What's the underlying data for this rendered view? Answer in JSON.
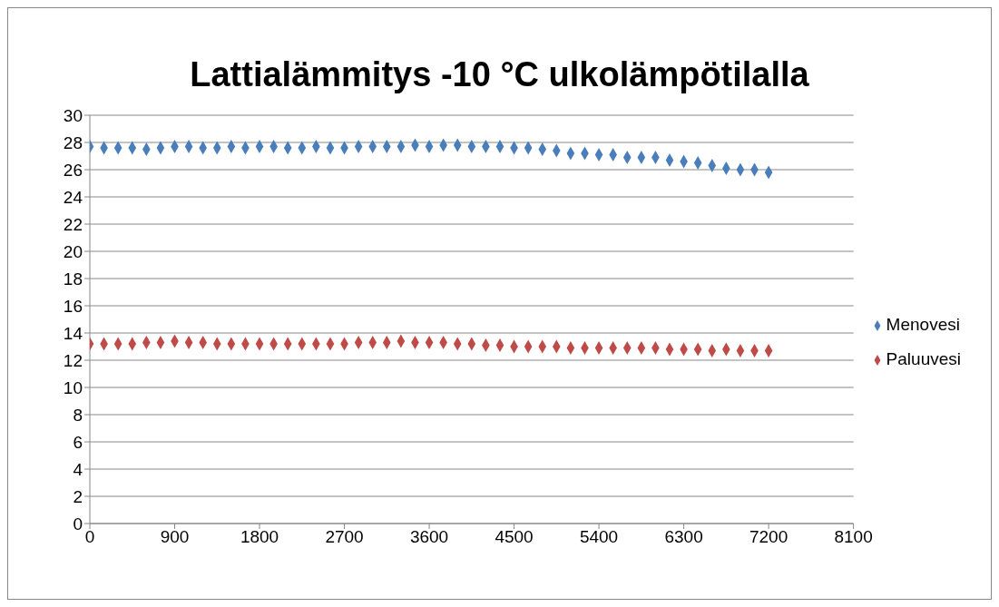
{
  "chart_data": {
    "type": "scatter",
    "title": "Lattialämmitys -10 °C ulkolämpötilalla",
    "x": [
      0,
      150,
      300,
      450,
      600,
      750,
      900,
      1050,
      1200,
      1350,
      1500,
      1650,
      1800,
      1950,
      2100,
      2250,
      2400,
      2550,
      2700,
      2850,
      3000,
      3150,
      3300,
      3450,
      3600,
      3750,
      3900,
      4050,
      4200,
      4350,
      4500,
      4650,
      4800,
      4950,
      5100,
      5250,
      5400,
      5550,
      5700,
      5850,
      6000,
      6150,
      6300,
      6450,
      6600,
      6750,
      6900,
      7050,
      7200
    ],
    "series": [
      {
        "name": "Menovesi",
        "color": "#4a7ebb",
        "values": [
          27.7,
          27.6,
          27.6,
          27.6,
          27.5,
          27.6,
          27.7,
          27.7,
          27.6,
          27.6,
          27.7,
          27.6,
          27.7,
          27.7,
          27.6,
          27.6,
          27.7,
          27.6,
          27.6,
          27.7,
          27.7,
          27.7,
          27.7,
          27.8,
          27.7,
          27.8,
          27.8,
          27.7,
          27.7,
          27.7,
          27.6,
          27.6,
          27.5,
          27.4,
          27.2,
          27.2,
          27.1,
          27.1,
          26.9,
          26.9,
          26.9,
          26.7,
          26.6,
          26.5,
          26.3,
          26.1,
          26.0,
          26.0,
          25.8
        ]
      },
      {
        "name": "Paluuvesi",
        "color": "#be4b48",
        "values": [
          13.2,
          13.2,
          13.2,
          13.2,
          13.3,
          13.3,
          13.4,
          13.3,
          13.3,
          13.2,
          13.2,
          13.2,
          13.2,
          13.2,
          13.2,
          13.2,
          13.2,
          13.2,
          13.2,
          13.3,
          13.3,
          13.3,
          13.4,
          13.3,
          13.3,
          13.3,
          13.2,
          13.2,
          13.1,
          13.1,
          13.0,
          13.0,
          13.0,
          13.0,
          12.9,
          12.9,
          12.9,
          12.9,
          12.9,
          12.9,
          12.9,
          12.8,
          12.8,
          12.8,
          12.7,
          12.8,
          12.7,
          12.7,
          12.7
        ]
      }
    ],
    "xlim": [
      0,
      8100
    ],
    "xticks": [
      0,
      900,
      1800,
      2700,
      3600,
      4500,
      5400,
      6300,
      7200,
      8100
    ],
    "ylim": [
      0,
      30
    ],
    "yticks": [
      0,
      2,
      4,
      6,
      8,
      10,
      12,
      14,
      16,
      18,
      20,
      22,
      24,
      26,
      28,
      30
    ],
    "grid": "y",
    "legend": "right",
    "marker": "diamond"
  }
}
